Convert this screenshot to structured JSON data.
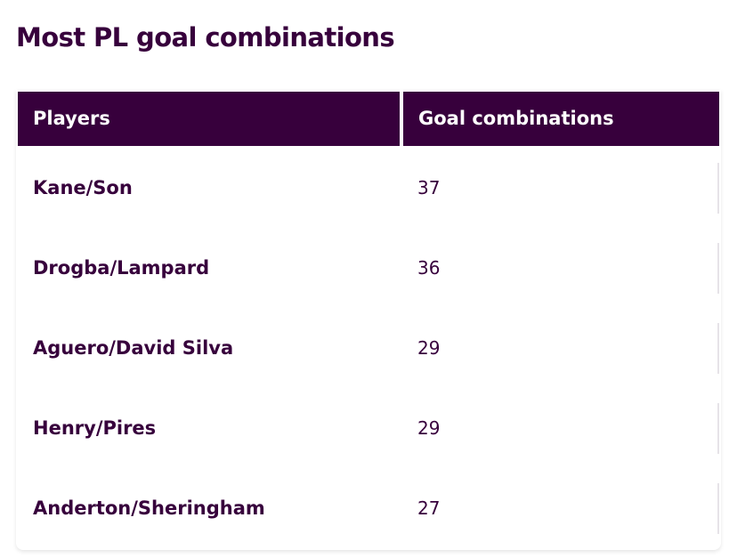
{
  "title": "Most PL goal combinations",
  "table": {
    "headers": [
      "Players",
      "Goal combinations"
    ],
    "rows": [
      {
        "players": "Kane/Son",
        "goal_combinations": "37"
      },
      {
        "players": "Drogba/Lampard",
        "goal_combinations": "36"
      },
      {
        "players": "Aguero/David Silva",
        "goal_combinations": "29"
      },
      {
        "players": "Henry/Pires",
        "goal_combinations": "29"
      },
      {
        "players": "Anderton/Sheringham",
        "goal_combinations": "27"
      }
    ]
  },
  "colors": {
    "brand_purple": "#37003c",
    "header_text": "#ffffff",
    "divider": "#e6e3e8"
  }
}
